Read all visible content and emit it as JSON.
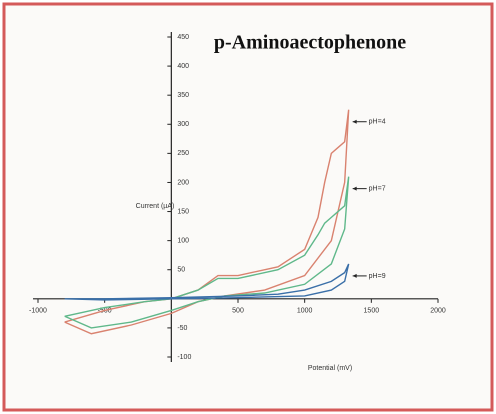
{
  "chart_data": {
    "type": "line",
    "title": "p-Aminoaectophenone",
    "xlabel": "Potential (mV)",
    "ylabel": "Current (µA)",
    "xlim": [
      -1000,
      2000
    ],
    "xticks": [
      -1000,
      -500,
      500,
      1000,
      1500,
      2000
    ],
    "ylim": [
      -100,
      450
    ],
    "yticks": [
      -100,
      -50,
      50,
      100,
      150,
      200,
      250,
      300,
      350,
      400,
      450
    ],
    "series": [
      {
        "name": "pH=4",
        "color": "#d9826f",
        "x": [
          -800,
          -500,
          -200,
          0,
          200,
          350,
          500,
          800,
          1000,
          1100,
          1150,
          1200,
          1250,
          1300,
          1330,
          1300,
          1200,
          1000,
          700,
          400,
          200,
          0,
          -300,
          -600,
          -800
        ],
        "values": [
          -40,
          -20,
          -5,
          0,
          15,
          40,
          40,
          55,
          85,
          140,
          200,
          250,
          260,
          270,
          325,
          200,
          100,
          40,
          15,
          5,
          -5,
          -25,
          -45,
          -60,
          -40
        ]
      },
      {
        "name": "pH=7",
        "color": "#5fb88a",
        "x": [
          -800,
          -500,
          -200,
          0,
          200,
          350,
          500,
          800,
          1000,
          1100,
          1150,
          1200,
          1250,
          1300,
          1330,
          1300,
          1200,
          1000,
          700,
          400,
          200,
          0,
          -300,
          -600,
          -800
        ],
        "values": [
          -30,
          -15,
          -5,
          0,
          15,
          35,
          35,
          50,
          75,
          110,
          130,
          140,
          150,
          160,
          210,
          120,
          60,
          25,
          10,
          5,
          -5,
          -20,
          -40,
          -50,
          -30
        ]
      },
      {
        "name": "pH=9",
        "color": "#3a6fa8",
        "x": [
          -800,
          -500,
          0,
          500,
          800,
          1000,
          1200,
          1300,
          1330,
          1300,
          1200,
          1000,
          500,
          0,
          -500,
          -800
        ],
        "values": [
          0,
          0,
          2,
          5,
          8,
          15,
          30,
          45,
          60,
          30,
          15,
          5,
          2,
          0,
          -2,
          0
        ]
      }
    ]
  }
}
